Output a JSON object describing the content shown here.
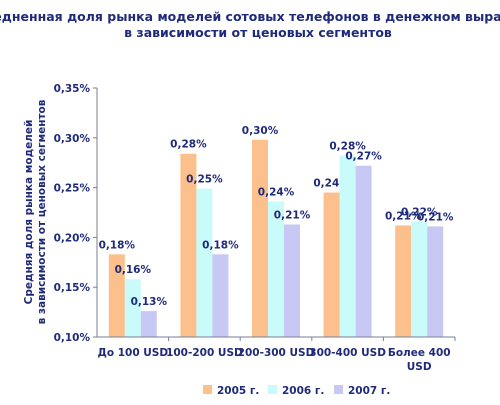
{
  "chart_data": {
    "type": "bar",
    "title_lines": [
      "Усредненная доля рынка моделей сотовых телефонов в денежном выражении",
      "в зависимости от ценовых сегментов"
    ],
    "ylabel_lines": [
      "Средняя доля рынка моделей",
      "в зависимости от ценовых сегментов"
    ],
    "xlabel": "",
    "ylim": [
      0.1,
      0.35
    ],
    "yticks": [
      0.1,
      0.15,
      0.2,
      0.25,
      0.3,
      0.35
    ],
    "ytick_labels": [
      "0,10%",
      "0,15%",
      "0,20%",
      "0,25%",
      "0,30%",
      "0,35%"
    ],
    "categories": [
      [
        "До 100 USD"
      ],
      [
        "100-200 USD"
      ],
      [
        "200-300 USD"
      ],
      [
        "300-400 USD"
      ],
      [
        "Более 400",
        "USD"
      ]
    ],
    "series": [
      {
        "name": "2005 г.",
        "color": "#fbc08c",
        "values": [
          0.183,
          0.284,
          0.298,
          0.245,
          0.212
        ],
        "labels": [
          "0,18%",
          "0,28%",
          "0,30%",
          "0,24%",
          "0,21%"
        ]
      },
      {
        "name": "2006 г.",
        "color": "#c9fbfb",
        "values": [
          0.158,
          0.249,
          0.236,
          0.282,
          0.216
        ],
        "labels": [
          "0,16%",
          "0,25%",
          "0,24%",
          "0,28%",
          "0,22%"
        ]
      },
      {
        "name": "2007 г.",
        "color": "#c8c8f4",
        "values": [
          0.126,
          0.183,
          0.213,
          0.272,
          0.211
        ],
        "labels": [
          "0,13%",
          "0,18%",
          "0,21%",
          "0,27%",
          "0,21%"
        ]
      }
    ],
    "grid": false,
    "legend_position": "bottom"
  }
}
